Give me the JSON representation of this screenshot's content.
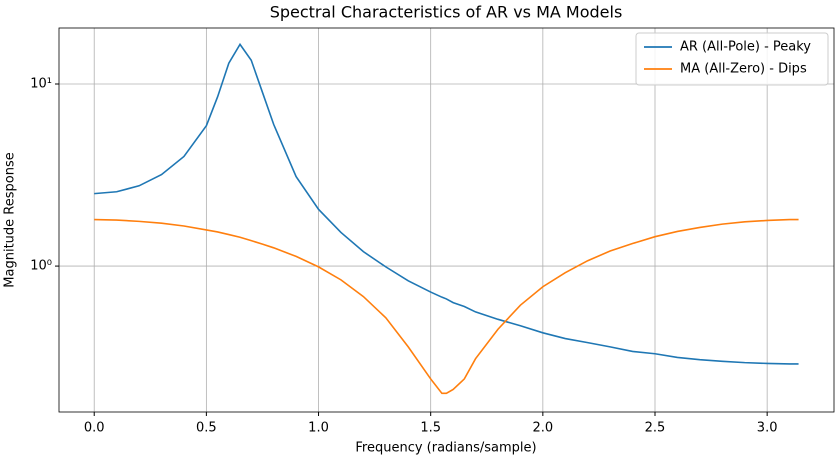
{
  "chart_data": {
    "type": "line",
    "title": "Spectral Characteristics of AR vs MA Models",
    "xlabel": "Frequency (radians/sample)",
    "ylabel": "Magnitude Response",
    "x": [
      0,
      0.1,
      0.2,
      0.3,
      0.4,
      0.5,
      0.55,
      0.6,
      0.65,
      0.7,
      0.75,
      0.8,
      0.9,
      1.0,
      1.1,
      1.2,
      1.3,
      1.4,
      1.5,
      1.55,
      1.57,
      1.6,
      1.65,
      1.7,
      1.8,
      1.9,
      2.0,
      2.1,
      2.2,
      2.3,
      2.4,
      2.5,
      2.6,
      2.7,
      2.8,
      2.9,
      3.0,
      3.1,
      3.14
    ],
    "series": [
      {
        "name": "AR (All-Pole) - Peaky",
        "color": "#1f77b4",
        "values": [
          2.5,
          2.56,
          2.76,
          3.18,
          4.0,
          5.9,
          8.5,
          13.0,
          16.5,
          13.5,
          9.0,
          6.0,
          3.1,
          2.05,
          1.53,
          1.2,
          0.99,
          0.83,
          0.72,
          0.675,
          0.66,
          0.63,
          0.6,
          0.56,
          0.51,
          0.47,
          0.43,
          0.4,
          0.38,
          0.36,
          0.34,
          0.33,
          0.315,
          0.306,
          0.3,
          0.295,
          0.292,
          0.29,
          0.29
        ]
      },
      {
        "name": "MA (All-Zero) - Dips",
        "color": "#ff7f0e",
        "values": [
          1.8,
          1.79,
          1.76,
          1.72,
          1.66,
          1.58,
          1.54,
          1.49,
          1.44,
          1.38,
          1.32,
          1.26,
          1.13,
          0.99,
          0.84,
          0.68,
          0.52,
          0.36,
          0.24,
          0.2,
          0.2,
          0.21,
          0.24,
          0.31,
          0.45,
          0.61,
          0.77,
          0.92,
          1.07,
          1.21,
          1.33,
          1.45,
          1.55,
          1.63,
          1.7,
          1.75,
          1.78,
          1.8,
          1.8
        ]
      }
    ],
    "xlim": [
      -0.157,
      3.298
    ],
    "xticks": [
      {
        "value": 0,
        "label": "0.0"
      },
      0.5,
      {
        "value": 1,
        "label": "1.0"
      },
      1.5,
      {
        "value": 2,
        "label": "2.0"
      },
      2.5,
      {
        "value": 3,
        "label": "3.0"
      }
    ],
    "ylim": [
      0.158,
      20.3
    ],
    "yticks": [
      {
        "value": 1,
        "label": "10⁰"
      },
      {
        "value": 10,
        "label": "10¹"
      }
    ],
    "yscale": "log",
    "grid": true,
    "legend": "upper right"
  }
}
